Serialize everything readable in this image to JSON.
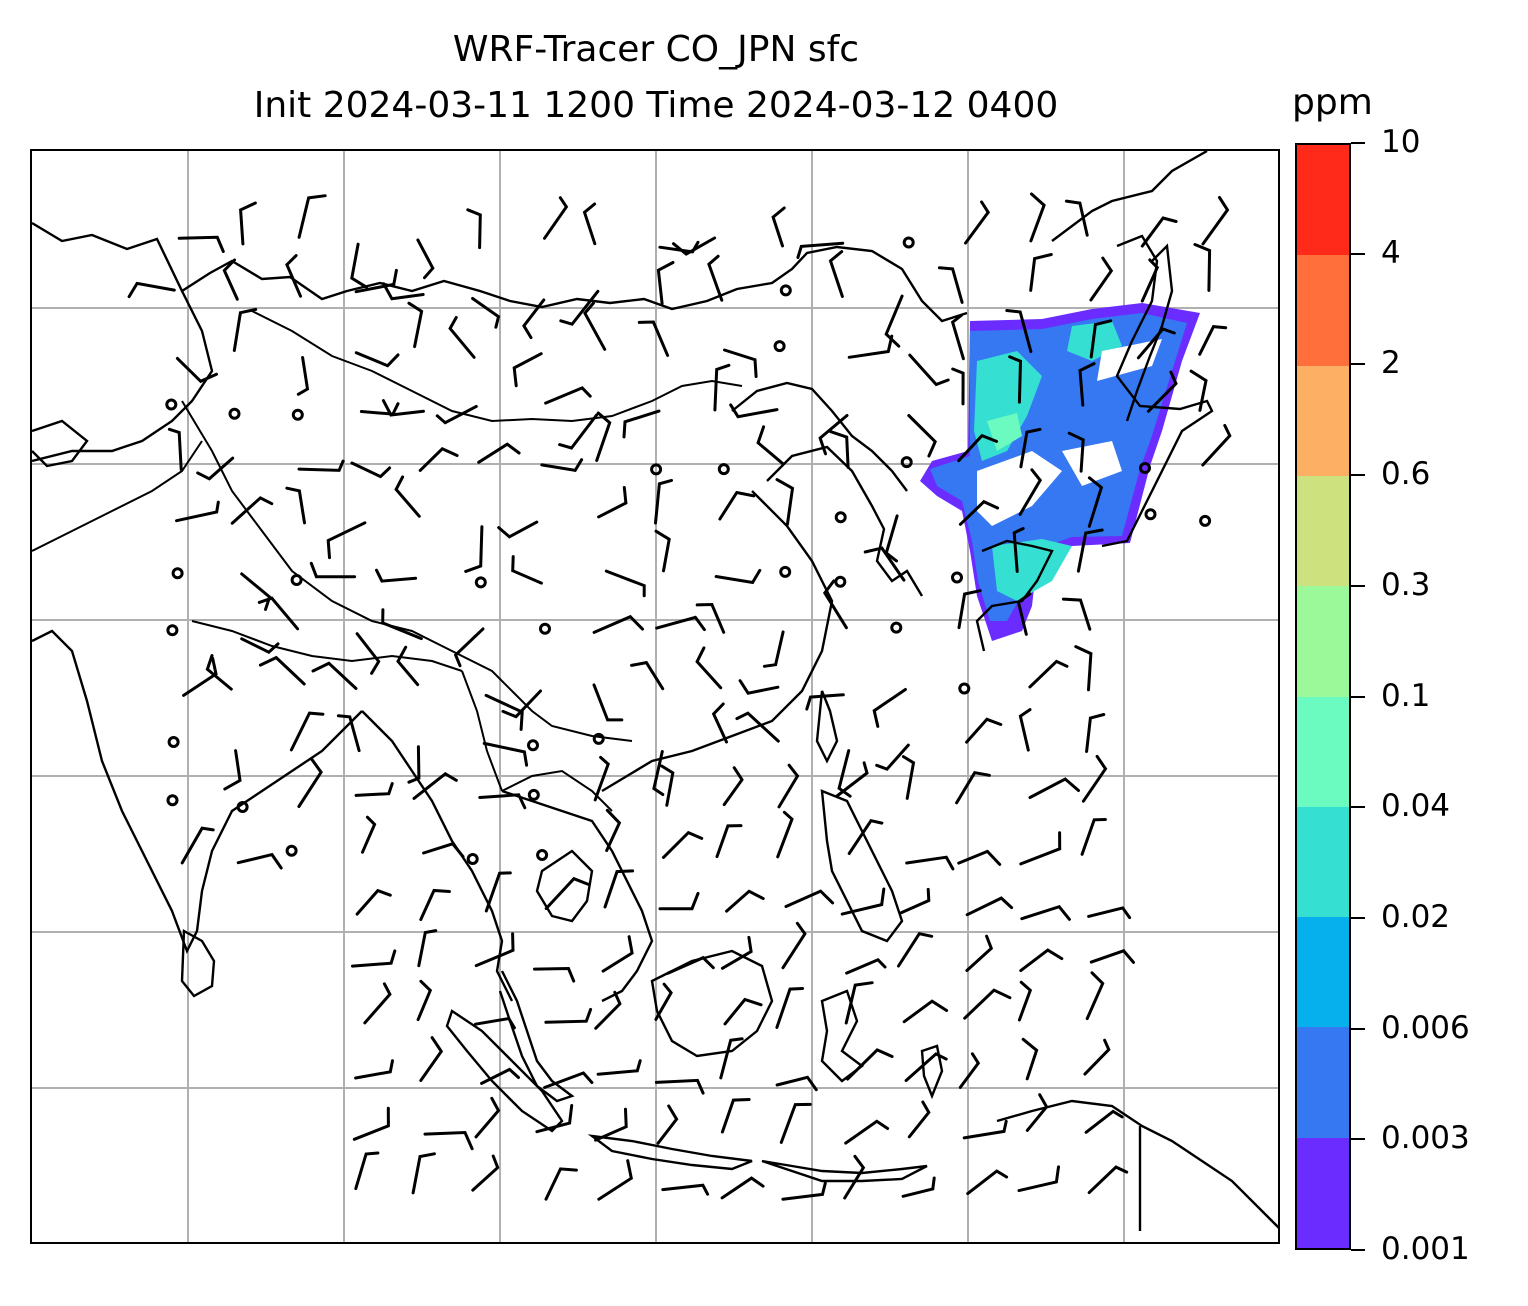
{
  "title_line1": "WRF-Tracer CO_JPN sfc",
  "title_line2": "Init 2024-03-11 1200 Time 2024-03-12 0400",
  "colorbar": {
    "unit": "ppm",
    "levels": [
      "0.001",
      "0.003",
      "0.006",
      "0.02",
      "0.04",
      "0.1",
      "0.3",
      "0.6",
      "2",
      "4",
      "10"
    ],
    "colors": [
      "#6a2cff",
      "#3677f2",
      "#05b0ec",
      "#35dfd2",
      "#6bfac0",
      "#9bf99a",
      "#cde17f",
      "#fdb064",
      "#ff6f3c",
      "#ff2a1a"
    ]
  },
  "map": {
    "grid_color": "#b0b0b0",
    "coastline_color": "#000000",
    "plume": {
      "unit": "ppm",
      "max_level": "0.1",
      "colors_shown": [
        "#6a2cff",
        "#3677f2",
        "#35dfd2",
        "#6bfac0"
      ]
    },
    "wind_barbs": "black",
    "calm_symbol": "open circle"
  }
}
